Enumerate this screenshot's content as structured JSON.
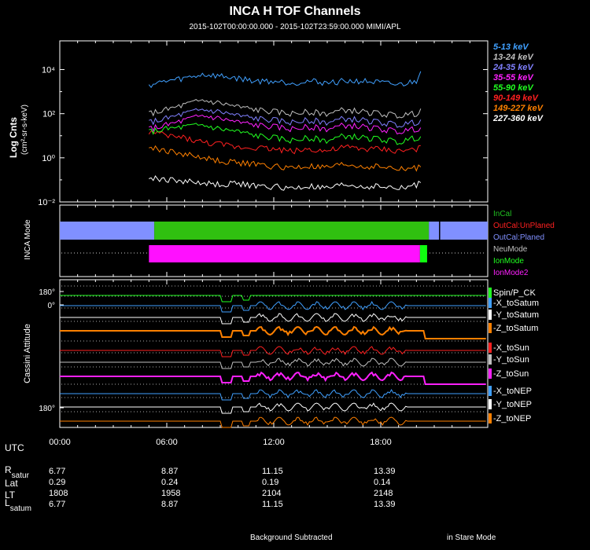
{
  "header": {
    "title": "INCA H TOF Channels",
    "subtitle": "2015-102T00:00:00.000 - 2015-102T23:59:00.000 MIMI/APL"
  },
  "chart_data": [
    {
      "type": "line",
      "title": "INCA H TOF Channels",
      "ylabel": "Log Cnts",
      "ylabel_units": "(cm²-sr-s-keV)",
      "yscale": "log",
      "ylim": [
        0.01,
        200000
      ],
      "xlim": [
        0,
        24
      ],
      "y_tick_labels": [
        "10⁴",
        "10²",
        "10⁰",
        "10⁻²"
      ],
      "y_tick_values": [
        10000,
        100,
        1,
        0.01
      ],
      "legend_position": "right",
      "series": [
        {
          "name": "227-360 keV",
          "color": "#ffffff",
          "x": [
            5.0,
            6,
            7,
            8,
            9,
            10,
            11,
            12,
            13,
            14,
            15,
            16,
            17,
            18,
            19,
            20,
            20.3
          ],
          "y": [
            0.12,
            0.1,
            0.09,
            0.07,
            0.06,
            0.07,
            0.05,
            0.05,
            0.04,
            0.05,
            0.04,
            0.06,
            0.05,
            0.05,
            0.04,
            0.06,
            0.1
          ]
        },
        {
          "name": "149-227 keV",
          "color": "#ff8000",
          "x": [
            5.0,
            6,
            7,
            8,
            9,
            10,
            11,
            12,
            13,
            14,
            15,
            16,
            17,
            18,
            19,
            20,
            20.3
          ],
          "y": [
            3,
            2,
            1.5,
            1,
            0.7,
            0.6,
            0.5,
            0.4,
            0.35,
            0.4,
            0.35,
            0.5,
            0.4,
            0.4,
            0.3,
            0.35,
            0.5
          ]
        },
        {
          "name": "90-149 keV",
          "color": "#ff2020",
          "x": [
            5.0,
            6,
            7,
            8,
            9,
            10,
            11,
            12,
            13,
            14,
            15,
            16,
            17,
            18,
            19,
            20,
            20.3
          ],
          "y": [
            15,
            10,
            8,
            5,
            4,
            3,
            3,
            2.5,
            2,
            2.5,
            2,
            3,
            2.5,
            2.5,
            2,
            2.5,
            3
          ]
        },
        {
          "name": "55-90 keV",
          "color": "#20ff20",
          "x": [
            5.0,
            6,
            7,
            8,
            9,
            10,
            11,
            12,
            13,
            14,
            15,
            16,
            17,
            18,
            19,
            20,
            20.3
          ],
          "y": [
            15,
            20,
            25,
            30,
            20,
            15,
            10,
            8,
            6,
            8,
            6,
            10,
            8,
            7,
            5,
            8,
            10
          ]
        },
        {
          "name": "35-55 keV",
          "color": "#ff20ff",
          "x": [
            5.0,
            6,
            7,
            8,
            9,
            10,
            11,
            12,
            13,
            14,
            15,
            16,
            17,
            18,
            19,
            20,
            20.3
          ],
          "y": [
            20,
            30,
            50,
            80,
            60,
            40,
            30,
            25,
            20,
            25,
            20,
            30,
            25,
            20,
            15,
            20,
            25
          ]
        },
        {
          "name": "24-35 keV",
          "color": "#8080ff",
          "x": [
            5.0,
            6,
            7,
            8,
            9,
            10,
            11,
            12,
            13,
            14,
            15,
            16,
            17,
            18,
            19,
            20,
            20.3
          ],
          "y": [
            40,
            60,
            100,
            150,
            120,
            80,
            60,
            50,
            40,
            50,
            40,
            60,
            50,
            40,
            30,
            40,
            60
          ]
        },
        {
          "name": "13-24 keV",
          "color": "#c0c0c0",
          "x": [
            5.0,
            6,
            7,
            8,
            9,
            10,
            11,
            12,
            13,
            14,
            15,
            16,
            17,
            18,
            19,
            20,
            20.3
          ],
          "y": [
            100,
            150,
            250,
            400,
            300,
            200,
            150,
            120,
            100,
            120,
            100,
            150,
            120,
            100,
            80,
            100,
            200
          ]
        },
        {
          "name": "5-13 keV",
          "color": "#40a0ff",
          "x": [
            5.0,
            6,
            7,
            8,
            9,
            10,
            11,
            12,
            13,
            14,
            15,
            16,
            17,
            18,
            19,
            20,
            20.3
          ],
          "y": [
            2000,
            3000,
            4000,
            6000,
            5000,
            4000,
            3000,
            3000,
            2500,
            3000,
            2500,
            3000,
            3000,
            2500,
            2000,
            3000,
            15000
          ]
        }
      ]
    },
    {
      "type": "bar",
      "ylabel": "INCA Mode",
      "legend_position": "right",
      "legend": [
        {
          "name": "InCal",
          "color": "#20c020"
        },
        {
          "name": "OutCal:UnPlaned",
          "color": "#ff2020"
        },
        {
          "name": "OutCal:Planed",
          "color": "#8090ff"
        },
        {
          "name": "NeuMode",
          "color": "#c0c0c0"
        },
        {
          "name": "IonMode",
          "color": "#20ff20"
        },
        {
          "name": "IonMode2",
          "color": "#ff20ff"
        }
      ],
      "row1": [
        {
          "mode": "OutCal:Planed",
          "start": 0,
          "end": 5.3,
          "color": "#8090ff"
        },
        {
          "mode": "InCal",
          "start": 5.3,
          "end": 20.7,
          "color": "#30c010"
        },
        {
          "mode": "OutCal:Planed",
          "start": 20.7,
          "end": 24,
          "color": "#8090ff"
        }
      ],
      "row2": [
        {
          "mode": "IonMode2",
          "start": 5.0,
          "end": 20.2,
          "color": "#ff10ff"
        },
        {
          "mode": "IonMode",
          "start": 20.2,
          "end": 20.6,
          "color": "#10ff10"
        }
      ]
    },
    {
      "type": "line",
      "ylabel": "Cassini Attitude",
      "y_tick_labels": [
        "180°",
        "0°",
        "180°"
      ],
      "legend_position": "right",
      "series": [
        {
          "name": "Spin/P_CK",
          "color": "#20ff20"
        },
        {
          "name": "-X_toSatum",
          "color": "#40a0ff"
        },
        {
          "name": "-Y_toSatum",
          "color": "#ffffff"
        },
        {
          "name": "-Z_toSatum",
          "color": "#ff8000"
        },
        {
          "name": "-X_toSun",
          "color": "#ff2020"
        },
        {
          "name": "-Y_toSun",
          "color": "#c0c0c0"
        },
        {
          "name": "-Z_toSun",
          "color": "#ff20ff"
        },
        {
          "name": "-X_toNEP",
          "color": "#40a0ff"
        },
        {
          "name": "-Y_toNEP",
          "color": "#ffffff"
        },
        {
          "name": "-Z_toNEP",
          "color": "#ff8000"
        }
      ]
    }
  ],
  "x_axis": {
    "label": "UTC",
    "ticks": [
      {
        "value": 0,
        "label": "00:00"
      },
      {
        "value": 6,
        "label": "06:00"
      },
      {
        "value": 12,
        "label": "12:00"
      },
      {
        "value": 18,
        "label": "18:00"
      }
    ]
  },
  "ephemeris": {
    "rows": [
      {
        "label": "R",
        "sub": "satur",
        "values": [
          "6.77",
          "8.87",
          "11.15",
          "13.39"
        ]
      },
      {
        "label": "Lat",
        "sub": "",
        "values": [
          "0.29",
          "0.24",
          "0.19",
          "0.14"
        ]
      },
      {
        "label": "LT",
        "sub": "",
        "values": [
          "1808",
          "1958",
          "2104",
          "2148"
        ]
      },
      {
        "label": "L",
        "sub": "satum",
        "values": [
          "6.77",
          "8.87",
          "11.15",
          "13.39"
        ]
      }
    ]
  },
  "footer": {
    "left": "Background Subtracted",
    "right": "in Stare Mode"
  },
  "colors": {
    "background": "#000000",
    "frame": "#ffffff",
    "grid": "#c0c0c0"
  }
}
